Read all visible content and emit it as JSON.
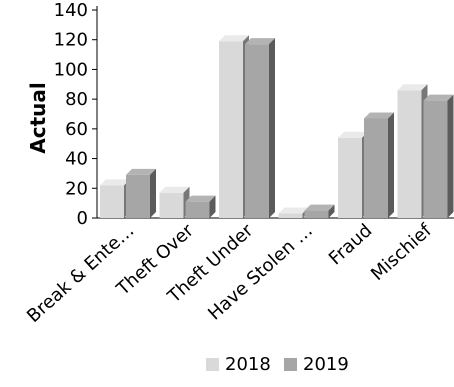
{
  "chart_data": {
    "type": "bar",
    "categories": [
      "Break & Ente…",
      "Theft Over",
      "Theft Under",
      "Have Stolen …",
      "Fraud",
      "Mischief"
    ],
    "series": [
      {
        "name": "2018",
        "values": [
          22,
          17,
          119,
          3,
          54,
          86
        ],
        "color": "#d9d9d9"
      },
      {
        "name": "2019",
        "values": [
          29,
          11,
          117,
          5,
          67,
          79
        ],
        "color": "#a6a6a6"
      }
    ],
    "ylabel": "Actual",
    "xlabel": "",
    "ylim": [
      0,
      140
    ],
    "yticks": [
      0,
      20,
      40,
      60,
      80,
      100,
      120,
      140
    ],
    "legend_position": "bottom",
    "grid": false,
    "bar_style": "3d"
  }
}
